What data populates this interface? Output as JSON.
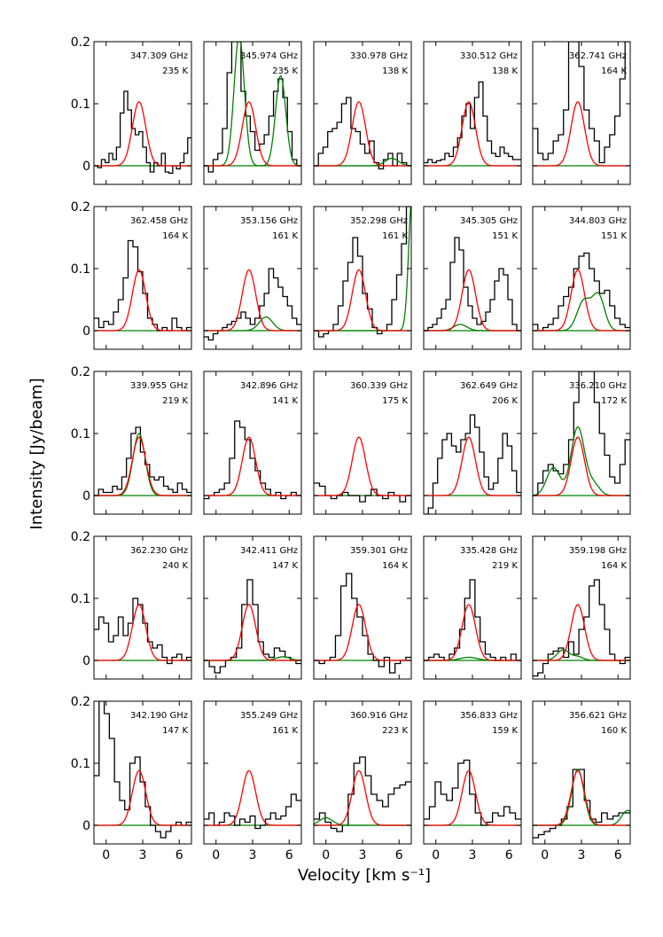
{
  "figure": {
    "xlabel": "Velocity [km s⁻¹]",
    "ylabel": "Intensity [Jy/beam]"
  },
  "colors": {
    "observed": "#000000",
    "model": "#ff0000",
    "blend": "#008000"
  },
  "chart_data": {
    "type": "line",
    "xlim": [
      -1,
      7
    ],
    "ylim": [
      -0.03,
      0.2
    ],
    "xticks": [
      "0",
      "3",
      "6"
    ],
    "yticks": [
      "0",
      "0.1",
      "0.2"
    ],
    "panels": [
      {
        "freq": "347.309 GHz",
        "temp": "235 K",
        "center": 2.7,
        "width": 0.55,
        "model": 0.103,
        "obs": [
          0.0,
          -0.003,
          0.01,
          0.005,
          0.02,
          0.01,
          0.03,
          0.085,
          0.12,
          0.09,
          0.06,
          0.05,
          0.055,
          0.03,
          0.005,
          -0.01,
          0.005,
          0.0,
          0.02,
          -0.01,
          -0.012,
          0.0,
          -0.005,
          0.005,
          0.02,
          0.045
        ],
        "blend": null
      },
      {
        "freq": "345.974 GHz",
        "temp": "235 K",
        "center": 2.7,
        "width": 0.55,
        "model": 0.103,
        "obs": [
          0.0,
          -0.01,
          0.01,
          0.02,
          0.06,
          0.15,
          0.2,
          0.2,
          0.12,
          0.08,
          0.055,
          0.025,
          0.035,
          0.05,
          0.08,
          0.12,
          0.14,
          0.11,
          0.055,
          0.01,
          0.0
        ],
        "blend": [
          {
            "c": 1.9,
            "w": 0.42,
            "a": 0.21
          },
          {
            "c": 5.3,
            "w": 0.42,
            "a": 0.145
          }
        ]
      },
      {
        "freq": "330.978 GHz",
        "temp": "138 K",
        "center": 2.7,
        "width": 0.55,
        "model": 0.103,
        "obs": [
          0.0,
          0.02,
          0.03,
          0.055,
          0.06,
          0.07,
          0.1,
          0.11,
          0.06,
          0.055,
          0.035,
          0.02,
          0.04,
          0.005,
          -0.005,
          0.01,
          0.02,
          0.0,
          0.02,
          0.005,
          0.0
        ],
        "blend": [
          {
            "c": 5.4,
            "w": 0.55,
            "a": 0.012
          }
        ]
      },
      {
        "freq": "330.512 GHz",
        "temp": "138 K",
        "center": 2.7,
        "width": 0.55,
        "model": 0.103,
        "obs": [
          0.005,
          0.01,
          0.005,
          0.008,
          0.01,
          0.02,
          0.015,
          0.03,
          0.045,
          0.08,
          0.1,
          0.06,
          0.11,
          0.135,
          0.08,
          0.04,
          0.02,
          0.015,
          0.03,
          0.02,
          0.015,
          0.01,
          0.01
        ],
        "blend": null
      },
      {
        "freq": "362.741 GHz",
        "temp": "164 K",
        "center": 2.7,
        "width": 0.55,
        "model": 0.103,
        "obs": [
          0.06,
          0.02,
          0.01,
          0.02,
          0.04,
          0.05,
          0.09,
          0.22,
          0.21,
          0.16,
          0.09,
          0.06,
          0.04,
          0.005,
          0.03,
          0.05,
          0.08,
          0.14,
          0.22
        ],
        "blend": null
      },
      {
        "freq": "362.458 GHz",
        "temp": "164 K",
        "center": 2.7,
        "width": 0.55,
        "model": 0.098,
        "obs": [
          0.02,
          0.005,
          0.015,
          0.01,
          0.03,
          0.05,
          0.085,
          0.145,
          0.135,
          0.095,
          0.06,
          0.02,
          0.01,
          0.0,
          0.005,
          0.0,
          0.02,
          0.005,
          0.0,
          0.005
        ],
        "blend": null
      },
      {
        "freq": "353.156 GHz",
        "temp": "161 K",
        "center": 2.7,
        "width": 0.55,
        "model": 0.098,
        "obs": [
          -0.01,
          -0.015,
          -0.005,
          0.0,
          0.005,
          0.01,
          0.015,
          0.02,
          0.03,
          0.02,
          0.01,
          0.02,
          0.04,
          0.06,
          0.1,
          0.085,
          0.07,
          0.055,
          0.04,
          0.02,
          0.01
        ],
        "blend": [
          {
            "c": 4.1,
            "w": 0.55,
            "a": 0.022
          }
        ]
      },
      {
        "freq": "352.298 GHz",
        "temp": "161 K",
        "center": 2.7,
        "width": 0.55,
        "model": 0.098,
        "obs": [
          0.0,
          -0.01,
          -0.005,
          0.0,
          0.01,
          0.04,
          0.08,
          0.11,
          0.15,
          0.12,
          0.06,
          0.035,
          0.005,
          -0.005,
          0.0,
          0.01,
          0.05,
          0.09,
          0.14,
          0.2
        ],
        "blend": [
          {
            "c": 7.1,
            "w": 0.3,
            "a": 0.23
          }
        ]
      },
      {
        "freq": "345.305 GHz",
        "temp": "151 K",
        "center": 2.7,
        "width": 0.55,
        "model": 0.098,
        "obs": [
          0.0,
          0.005,
          0.01,
          0.02,
          0.035,
          0.05,
          0.11,
          0.15,
          0.13,
          0.07,
          0.04,
          0.02,
          0.01,
          0.015,
          0.03,
          0.05,
          0.08,
          0.1,
          0.09,
          0.05,
          0.01,
          0.0
        ],
        "blend": [
          {
            "c": 2.0,
            "w": 0.55,
            "a": 0.01
          }
        ]
      },
      {
        "freq": "344.803 GHz",
        "temp": "151 K",
        "center": 2.7,
        "width": 0.55,
        "model": 0.098,
        "obs": [
          0.01,
          0.0,
          0.005,
          0.01,
          0.02,
          0.04,
          0.055,
          0.07,
          0.1,
          0.12,
          0.125,
          0.1,
          0.08,
          0.06,
          0.065,
          0.04,
          0.02,
          0.01,
          0.005
        ],
        "blend": [
          {
            "c": 3.2,
            "w": 0.55,
            "a": 0.048
          },
          {
            "c": 4.4,
            "w": 0.5,
            "a": 0.056
          }
        ]
      },
      {
        "freq": "339.955 GHz",
        "temp": "219 K",
        "center": 2.7,
        "width": 0.55,
        "model": 0.094,
        "obs": [
          0.0,
          0.01,
          0.005,
          0.005,
          0.015,
          0.01,
          0.03,
          0.06,
          0.1,
          0.11,
          0.07,
          0.05,
          0.03,
          0.025,
          0.03,
          0.015,
          0.01,
          0.005,
          0.02,
          0.01,
          0.005
        ],
        "blend": [
          {
            "c": 2.7,
            "w": 0.5,
            "a": 0.1
          }
        ]
      },
      {
        "freq": "342.896 GHz",
        "temp": "141 K",
        "center": 2.7,
        "width": 0.55,
        "model": 0.094,
        "obs": [
          -0.005,
          0.0,
          0.005,
          0.01,
          0.02,
          0.06,
          0.12,
          0.11,
          0.09,
          0.06,
          0.04,
          0.02,
          0.01,
          0.0,
          0.005,
          -0.005,
          0.0,
          0.005,
          0.0
        ],
        "blend": null
      },
      {
        "freq": "360.339 GHz",
        "temp": "175 K",
        "center": 2.7,
        "width": 0.55,
        "model": 0.094,
        "obs": [
          0.02,
          0.015,
          0.0,
          -0.005,
          0.0,
          0.005,
          0.0,
          0.0,
          -0.01,
          0.0,
          0.01,
          0.0,
          -0.005,
          0.005,
          0.0,
          -0.01,
          0.0
        ],
        "blend": null
      },
      {
        "freq": "362.649 GHz",
        "temp": "206 K",
        "center": 2.7,
        "width": 0.55,
        "model": 0.094,
        "obs": [
          -0.03,
          -0.02,
          0.02,
          0.06,
          0.09,
          0.1,
          0.08,
          0.07,
          0.09,
          0.1,
          0.13,
          0.11,
          0.07,
          0.03,
          0.01,
          0.02,
          0.06,
          0.1,
          0.08,
          0.04,
          0.005
        ],
        "blend": null
      },
      {
        "freq": "336.210 GHz",
        "temp": "172 K",
        "center": 2.7,
        "width": 0.55,
        "model": 0.094,
        "obs": [
          0.0,
          0.02,
          0.04,
          0.05,
          0.04,
          0.035,
          0.05,
          0.09,
          0.15,
          0.2,
          0.22,
          0.2,
          0.15,
          0.1,
          0.065,
          0.03,
          0.02,
          0.05,
          0.09
        ],
        "blend": [
          {
            "c": 0.7,
            "w": 0.55,
            "a": 0.045
          },
          {
            "c": 2.7,
            "w": 0.55,
            "a": 0.11
          },
          {
            "c": 4.0,
            "w": 0.5,
            "a": 0.018
          }
        ]
      },
      {
        "freq": "362.230 GHz",
        "temp": "240 K",
        "center": 2.7,
        "width": 0.55,
        "model": 0.09,
        "obs": [
          0.05,
          0.07,
          0.06,
          0.03,
          0.04,
          0.07,
          0.04,
          0.06,
          0.1,
          0.09,
          0.06,
          0.03,
          0.02,
          0.025,
          0.005,
          -0.005,
          0.005,
          0.01,
          0.0,
          0.005
        ],
        "blend": null
      },
      {
        "freq": "342.411 GHz",
        "temp": "147 K",
        "center": 2.7,
        "width": 0.55,
        "model": 0.09,
        "obs": [
          0.0,
          -0.01,
          -0.02,
          -0.01,
          0.0,
          0.005,
          0.02,
          0.09,
          0.13,
          0.09,
          0.03,
          0.01,
          0.005,
          0.02,
          0.015,
          0.005,
          0.0,
          -0.005
        ],
        "blend": [
          {
            "c": 5.5,
            "w": 0.55,
            "a": 0.006
          }
        ]
      },
      {
        "freq": "359.301 GHz",
        "temp": "164 K",
        "center": 2.7,
        "width": 0.55,
        "model": 0.09,
        "obs": [
          0.0,
          -0.005,
          0.0,
          0.005,
          0.04,
          0.12,
          0.14,
          0.1,
          0.07,
          0.04,
          0.01,
          0.0,
          -0.01,
          0.005,
          -0.02,
          -0.005,
          0.0,
          0.005
        ],
        "blend": null
      },
      {
        "freq": "335.428 GHz",
        "temp": "219 K",
        "center": 2.7,
        "width": 0.55,
        "model": 0.09,
        "obs": [
          0.0,
          0.005,
          0.01,
          0.005,
          0.0,
          0.01,
          0.02,
          0.05,
          0.1,
          0.13,
          0.07,
          0.03,
          0.01,
          0.005,
          0.0,
          0.005,
          0.0,
          0.01,
          0.0
        ],
        "blend": [
          {
            "c": 2.7,
            "w": 0.7,
            "a": 0.005
          }
        ]
      },
      {
        "freq": "359.198 GHz",
        "temp": "164 K",
        "center": 2.7,
        "width": 0.55,
        "model": 0.09,
        "obs": [
          -0.025,
          -0.02,
          -0.005,
          0.01,
          0.015,
          0.02,
          0.005,
          0.03,
          0.01,
          0.05,
          0.07,
          0.12,
          0.13,
          0.09,
          0.05,
          0.01,
          0.0,
          -0.005,
          0.005
        ],
        "blend": [
          {
            "c": 1.5,
            "w": 0.5,
            "a": 0.017
          },
          {
            "c": 2.7,
            "w": 0.45,
            "a": 0.006
          }
        ]
      },
      {
        "freq": "342.190 GHz",
        "temp": "147 K",
        "center": 2.7,
        "width": 0.55,
        "model": 0.088,
        "obs": [
          0.08,
          0.2,
          0.18,
          0.14,
          0.07,
          0.04,
          0.025,
          0.1,
          0.11,
          0.07,
          0.03,
          0.0,
          -0.01,
          -0.02,
          -0.01,
          0.0,
          0.005,
          0.0,
          0.005
        ],
        "blend": null
      },
      {
        "freq": "355.249 GHz",
        "temp": "161 K",
        "center": 2.7,
        "width": 0.55,
        "model": 0.088,
        "obs": [
          0.01,
          0.02,
          0.0,
          0.005,
          0.02,
          0.015,
          0.0,
          0.01,
          0.005,
          0.015,
          -0.005,
          0.0,
          0.01,
          0.02,
          0.01,
          0.015,
          0.03,
          0.05,
          0.04
        ],
        "blend": null
      },
      {
        "freq": "360.916 GHz",
        "temp": "223 K",
        "center": 2.7,
        "width": 0.55,
        "model": 0.088,
        "obs": [
          0.01,
          0.02,
          0.005,
          -0.005,
          -0.01,
          0.0,
          0.05,
          0.1,
          0.11,
          0.08,
          0.05,
          0.04,
          0.03,
          0.05,
          0.06,
          0.065,
          0.07
        ],
        "blend": [
          {
            "c": 0.0,
            "w": 0.55,
            "a": 0.012
          }
        ]
      },
      {
        "freq": "356.833 GHz",
        "temp": "159 K",
        "center": 2.7,
        "width": 0.55,
        "model": 0.088,
        "obs": [
          0.01,
          0.03,
          0.07,
          0.05,
          0.04,
          0.06,
          0.1,
          0.105,
          0.05,
          0.02,
          0.0,
          0.005,
          0.02,
          0.015,
          0.03,
          0.02,
          0.01
        ],
        "blend": null
      },
      {
        "freq": "356.621 GHz",
        "temp": "160 K",
        "center": 2.7,
        "width": 0.55,
        "model": 0.088,
        "obs": [
          -0.02,
          -0.015,
          -0.01,
          -0.005,
          0.0,
          0.01,
          0.03,
          0.09,
          0.09,
          0.04,
          0.01,
          0.005,
          0.02,
          0.01,
          0.015,
          0.02,
          0.02
        ],
        "blend": [
          {
            "c": 2.7,
            "w": 0.5,
            "a": 0.09
          },
          {
            "c": 6.8,
            "w": 0.5,
            "a": 0.024
          }
        ]
      }
    ]
  }
}
